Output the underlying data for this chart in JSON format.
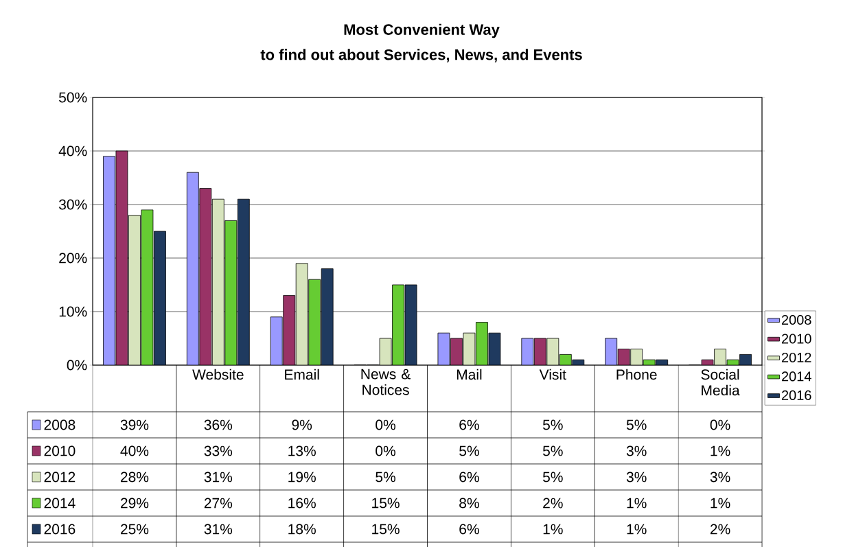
{
  "chart_data": {
    "type": "bar",
    "title": "Most Convenient Way",
    "subtitle": "to find out about Services, News, and Events",
    "categories": [
      null,
      "Website",
      "Email",
      "News & Notices",
      "Mail",
      "Visit",
      "Phone",
      "Social Media"
    ],
    "series": [
      {
        "name": "2008",
        "color": "#9999ff",
        "values": [
          39,
          36,
          9,
          0,
          6,
          5,
          5,
          0
        ],
        "value_labels": [
          "39%",
          "36%",
          "9%",
          "0%",
          "6%",
          "5%",
          "5%",
          "0%"
        ]
      },
      {
        "name": "2010",
        "color": "#993366",
        "values": [
          40,
          33,
          13,
          0,
          5,
          5,
          3,
          1
        ],
        "value_labels": [
          "40%",
          "33%",
          "13%",
          "0%",
          "5%",
          "5%",
          "3%",
          "1%"
        ]
      },
      {
        "name": "2012",
        "color": "#d7e4bd",
        "values": [
          28,
          31,
          19,
          5,
          6,
          5,
          3,
          3
        ],
        "value_labels": [
          "28%",
          "31%",
          "19%",
          "5%",
          "6%",
          "5%",
          "3%",
          "3%"
        ]
      },
      {
        "name": "2014",
        "color": "#66cc33",
        "values": [
          29,
          27,
          16,
          15,
          8,
          2,
          1,
          1
        ],
        "value_labels": [
          "29%",
          "27%",
          "16%",
          "15%",
          "8%",
          "2%",
          "1%",
          "1%"
        ]
      },
      {
        "name": "2016",
        "color": "#1f3a5f",
        "values": [
          25,
          31,
          18,
          15,
          6,
          1,
          1,
          2
        ],
        "value_labels": [
          "25%",
          "31%",
          "18%",
          "15%",
          "6%",
          "1%",
          "1%",
          "2%"
        ]
      }
    ],
    "ylim": [
      0,
      50
    ],
    "yticks": [
      {
        "value": 0,
        "label": "0%"
      },
      {
        "value": 10,
        "label": "10%"
      },
      {
        "value": 20,
        "label": "20%"
      },
      {
        "value": 30,
        "label": "30%"
      },
      {
        "value": 40,
        "label": "40%"
      },
      {
        "value": 50,
        "label": "50%"
      }
    ],
    "grid": "y",
    "legend": "right"
  }
}
